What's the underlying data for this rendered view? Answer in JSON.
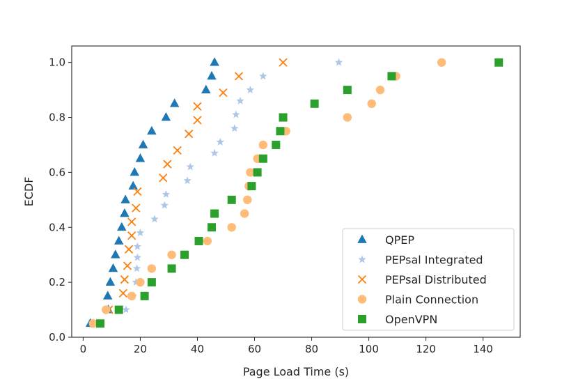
{
  "chart_data": {
    "type": "scatter",
    "title": "",
    "xlabel": "Page Load Time (s)",
    "ylabel": "ECDF",
    "xlim": [
      -4,
      153
    ],
    "ylim": [
      0,
      1.06
    ],
    "x_ticks": [
      0,
      20,
      40,
      60,
      80,
      100,
      120,
      140
    ],
    "y_ticks": [
      0.0,
      0.2,
      0.4,
      0.6,
      0.8,
      1.0
    ],
    "x_tick_labels": [
      "0",
      "20",
      "40",
      "60",
      "80",
      "100",
      "120",
      "140"
    ],
    "y_tick_labels": [
      "0.0",
      "0.2",
      "0.4",
      "0.6",
      "0.8",
      "1.0"
    ],
    "grid": false,
    "legend_position": "bottom-right",
    "series": [
      {
        "name": "QPEP",
        "color": "#1f77b4",
        "marker": "triangle",
        "points": [
          [
            2.5,
            0.05
          ],
          [
            8.8,
            0.1
          ],
          [
            8.6,
            0.15
          ],
          [
            9.5,
            0.2
          ],
          [
            10.5,
            0.25
          ],
          [
            11.3,
            0.3
          ],
          [
            12.5,
            0.35
          ],
          [
            13.5,
            0.4
          ],
          [
            14.5,
            0.45
          ],
          [
            14.8,
            0.5
          ],
          [
            17.5,
            0.55
          ],
          [
            18.0,
            0.6
          ],
          [
            20.0,
            0.65
          ],
          [
            21.0,
            0.7
          ],
          [
            24.0,
            0.75
          ],
          [
            29.0,
            0.8
          ],
          [
            32.0,
            0.85
          ],
          [
            43.0,
            0.9
          ],
          [
            45.0,
            0.95
          ],
          [
            46.0,
            1.0
          ]
        ]
      },
      {
        "name": "PEPsal Integrated",
        "color": "#aec7e8",
        "marker": "star",
        "points": [
          [
            15.0,
            0.1
          ],
          [
            17.5,
            0.15
          ],
          [
            18.5,
            0.2
          ],
          [
            18.8,
            0.25
          ],
          [
            19.0,
            0.29
          ],
          [
            19.0,
            0.33
          ],
          [
            20.0,
            0.38
          ],
          [
            25.0,
            0.43
          ],
          [
            28.5,
            0.48
          ],
          [
            29.0,
            0.52
          ],
          [
            36.5,
            0.57
          ],
          [
            37.5,
            0.62
          ],
          [
            46.0,
            0.67
          ],
          [
            48.0,
            0.71
          ],
          [
            53.0,
            0.76
          ],
          [
            53.5,
            0.81
          ],
          [
            55.0,
            0.86
          ],
          [
            58.5,
            0.9
          ],
          [
            63.0,
            0.95
          ],
          [
            89.5,
            1.0
          ]
        ]
      },
      {
        "name": "PEPsal Distributed",
        "color": "#ff7f0e",
        "marker": "x",
        "points": [
          [
            4.0,
            0.05
          ],
          [
            9.0,
            0.1
          ],
          [
            14.0,
            0.16
          ],
          [
            14.5,
            0.21
          ],
          [
            15.5,
            0.26
          ],
          [
            16.0,
            0.32
          ],
          [
            17.0,
            0.37
          ],
          [
            17.0,
            0.42
          ],
          [
            18.5,
            0.47
          ],
          [
            19.0,
            0.53
          ],
          [
            28.0,
            0.58
          ],
          [
            29.5,
            0.63
          ],
          [
            33.0,
            0.68
          ],
          [
            37.0,
            0.74
          ],
          [
            40.0,
            0.79
          ],
          [
            40.0,
            0.84
          ],
          [
            49.0,
            0.89
          ],
          [
            54.5,
            0.95
          ],
          [
            70.0,
            1.0
          ]
        ]
      },
      {
        "name": "Plain Connection",
        "color": "#ffbb78",
        "marker": "circle",
        "points": [
          [
            3.5,
            0.05
          ],
          [
            8.0,
            0.1
          ],
          [
            17.0,
            0.15
          ],
          [
            20.0,
            0.2
          ],
          [
            24.0,
            0.25
          ],
          [
            31.0,
            0.3
          ],
          [
            43.5,
            0.35
          ],
          [
            52.0,
            0.4
          ],
          [
            56.5,
            0.45
          ],
          [
            57.5,
            0.5
          ],
          [
            58.0,
            0.55
          ],
          [
            58.5,
            0.6
          ],
          [
            61.0,
            0.65
          ],
          [
            63.0,
            0.7
          ],
          [
            71.0,
            0.75
          ],
          [
            92.5,
            0.8
          ],
          [
            101.0,
            0.85
          ],
          [
            104.0,
            0.9
          ],
          [
            109.5,
            0.95
          ],
          [
            125.5,
            1.0
          ]
        ]
      },
      {
        "name": "OpenVPN",
        "color": "#2ca02c",
        "marker": "square",
        "points": [
          [
            6.0,
            0.05
          ],
          [
            12.5,
            0.1
          ],
          [
            21.5,
            0.15
          ],
          [
            24.0,
            0.2
          ],
          [
            31.0,
            0.25
          ],
          [
            35.5,
            0.3
          ],
          [
            40.5,
            0.35
          ],
          [
            45.0,
            0.4
          ],
          [
            46.0,
            0.45
          ],
          [
            52.0,
            0.5
          ],
          [
            59.0,
            0.55
          ],
          [
            61.0,
            0.6
          ],
          [
            63.0,
            0.65
          ],
          [
            67.5,
            0.7
          ],
          [
            69.0,
            0.75
          ],
          [
            70.0,
            0.8
          ],
          [
            81.0,
            0.85
          ],
          [
            92.5,
            0.9
          ],
          [
            108.0,
            0.95
          ],
          [
            145.5,
            1.0
          ]
        ]
      }
    ]
  }
}
